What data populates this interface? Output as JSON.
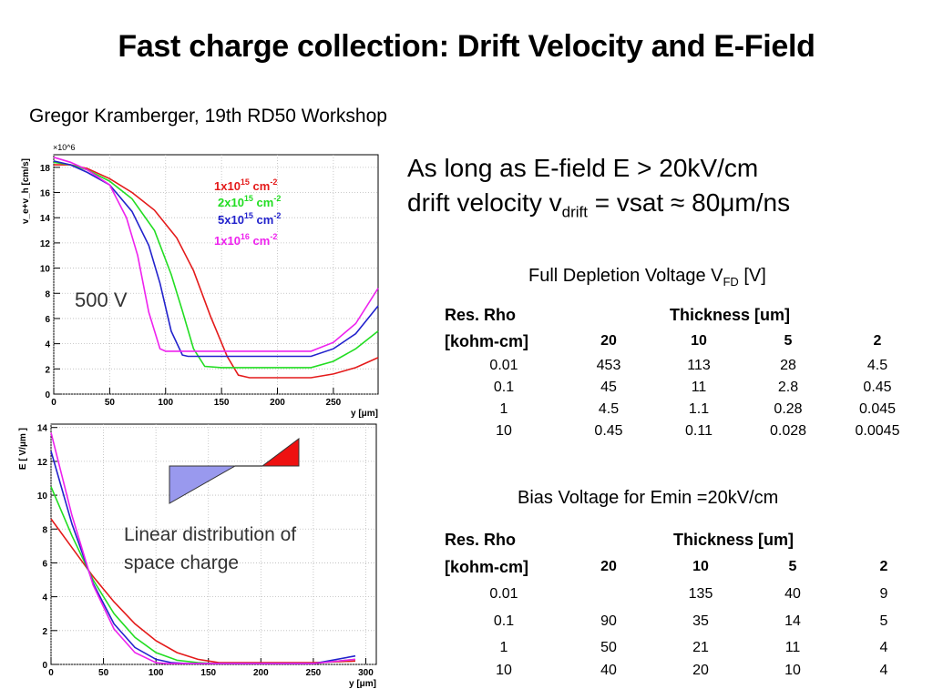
{
  "title": "Fast charge collection: Drift Velocity and E-Field",
  "subtitle": "Gregor Kramberger, 19th RD50 Workshop",
  "statement": {
    "line1": "As long as E-field E > 20kV/cm",
    "line2_pre": "drift velocity v",
    "line2_sub": "drift",
    "line2_post": " = vsat ≈ 80μm/ns"
  },
  "table1": {
    "caption_pre": "Full Depletion Voltage V",
    "caption_sub": "FD",
    "caption_post": " [V]",
    "label1": "Res. Rho",
    "label2": "[kohm-cm]",
    "header": "Thickness [um]",
    "thickness": [
      "20",
      "10",
      "5",
      "2"
    ],
    "rows": [
      [
        "0.01",
        "453",
        "113",
        "28",
        "4.5"
      ],
      [
        "0.1",
        "45",
        "11",
        "2.8",
        "0.45"
      ],
      [
        "1",
        "4.5",
        "1.1",
        "0.28",
        "0.045"
      ],
      [
        "10",
        "0.45",
        "0.11",
        "0.028",
        "0.0045"
      ]
    ]
  },
  "table2": {
    "caption": "Bias Voltage for Emin =20kV/cm",
    "label1": "Res. Rho",
    "label2": "[kohm-cm]",
    "header": "Thickness [um]",
    "thickness": [
      "20",
      "10",
      "5",
      "2"
    ],
    "rows": [
      [
        "0.01",
        "",
        "135",
        "40",
        "9"
      ],
      [
        "0.1",
        "90",
        "35",
        "14",
        "5"
      ],
      [
        "1",
        "50",
        "21",
        "11",
        "4"
      ],
      [
        "10",
        "40",
        "20",
        "10",
        "4"
      ]
    ]
  },
  "colors": {
    "red": "#e41a1a",
    "green": "#22dd22",
    "blue": "#2222cc",
    "magenta": "#ee22ee",
    "triangle_left": "#9999ee",
    "triangle_right": "#ee1111"
  },
  "chart_data": [
    {
      "type": "line",
      "ylabel": "v_e+v_h [cm/s]",
      "xlabel": "y [μm]",
      "y_multiplier": "×10^6",
      "xlim": [
        0,
        290
      ],
      "ylim": [
        0,
        19
      ],
      "xticks": [
        0,
        50,
        100,
        150,
        200,
        250
      ],
      "yticks": [
        0,
        2,
        4,
        6,
        8,
        10,
        12,
        14,
        16,
        18
      ],
      "annotation": "500 V",
      "series": [
        {
          "name": "1x10^15 cm^-2",
          "name_base": "1x10",
          "name_exp": "15",
          "name_unit": " cm",
          "name_unit_exp": "-2",
          "color": "#e41a1a",
          "x": [
            0,
            15,
            30,
            50,
            70,
            90,
            110,
            125,
            140,
            155,
            165,
            175,
            230,
            250,
            270,
            290
          ],
          "y": [
            18.2,
            18.2,
            17.9,
            17.1,
            16.0,
            14.6,
            12.4,
            9.8,
            6.2,
            3.0,
            1.5,
            1.3,
            1.3,
            1.6,
            2.1,
            2.9
          ]
        },
        {
          "name": "2x10^15 cm^-2",
          "name_base": "2x10",
          "name_exp": "15",
          "name_unit": " cm",
          "name_unit_exp": "-2",
          "color": "#22dd22",
          "x": [
            0,
            15,
            30,
            50,
            70,
            90,
            105,
            115,
            125,
            135,
            150,
            230,
            250,
            270,
            290
          ],
          "y": [
            18.4,
            18.2,
            17.8,
            16.9,
            15.5,
            13.0,
            9.5,
            6.6,
            3.6,
            2.2,
            2.1,
            2.1,
            2.6,
            3.6,
            5.0
          ]
        },
        {
          "name": "5x10^15 cm^-2",
          "name_base": "5x10",
          "name_exp": "15",
          "name_unit": " cm",
          "name_unit_exp": "-2",
          "color": "#2222cc",
          "x": [
            0,
            15,
            30,
            50,
            70,
            85,
            95,
            105,
            115,
            120,
            230,
            250,
            270,
            290
          ],
          "y": [
            18.5,
            18.2,
            17.6,
            16.6,
            14.5,
            11.8,
            8.8,
            5.0,
            3.1,
            3.0,
            3.0,
            3.6,
            4.8,
            7.0
          ]
        },
        {
          "name": "1x10^16 cm^-2",
          "name_base": "1x10",
          "name_exp": "16",
          "name_unit": " cm",
          "name_unit_exp": "-2",
          "color": "#ee22ee",
          "x": [
            0,
            15,
            30,
            50,
            65,
            75,
            85,
            95,
            100,
            230,
            250,
            270,
            290
          ],
          "y": [
            18.8,
            18.4,
            17.8,
            16.6,
            14.0,
            11.0,
            6.5,
            3.6,
            3.4,
            3.4,
            4.1,
            5.6,
            8.4
          ]
        }
      ]
    },
    {
      "type": "line",
      "ylabel": "E [ V/μm ]",
      "xlabel": "y [μm]",
      "xlim": [
        0,
        310
      ],
      "ylim": [
        0,
        14.2
      ],
      "xticks": [
        0,
        50,
        100,
        150,
        200,
        250,
        300
      ],
      "yticks": [
        0,
        2,
        4,
        6,
        8,
        10,
        12,
        14
      ],
      "annotation_line1": "Linear distribution of",
      "annotation_line2": "space charge",
      "series": [
        {
          "color": "#e41a1a",
          "x": [
            0,
            20,
            40,
            60,
            80,
            100,
            120,
            140,
            160,
            180,
            200,
            250,
            290
          ],
          "y": [
            8.6,
            6.9,
            5.2,
            3.7,
            2.4,
            1.4,
            0.7,
            0.3,
            0.1,
            0.1,
            0.1,
            0.1,
            0.2
          ]
        },
        {
          "color": "#22dd22",
          "x": [
            0,
            20,
            40,
            60,
            80,
            100,
            120,
            140,
            155,
            250,
            290
          ],
          "y": [
            10.5,
            7.6,
            5.0,
            3.0,
            1.6,
            0.7,
            0.25,
            0.1,
            0.05,
            0.05,
            0.3
          ]
        },
        {
          "color": "#2222cc",
          "x": [
            0,
            20,
            40,
            60,
            80,
            100,
            115,
            130,
            250,
            290
          ],
          "y": [
            12.6,
            8.3,
            4.8,
            2.4,
            1.0,
            0.3,
            0.1,
            0.05,
            0.05,
            0.5
          ]
        },
        {
          "color": "#ee22ee",
          "x": [
            0,
            20,
            40,
            60,
            80,
            100,
            110,
            250,
            290
          ],
          "y": [
            13.7,
            8.8,
            4.7,
            2.1,
            0.7,
            0.1,
            0.05,
            0.05,
            0.3
          ]
        }
      ]
    }
  ]
}
